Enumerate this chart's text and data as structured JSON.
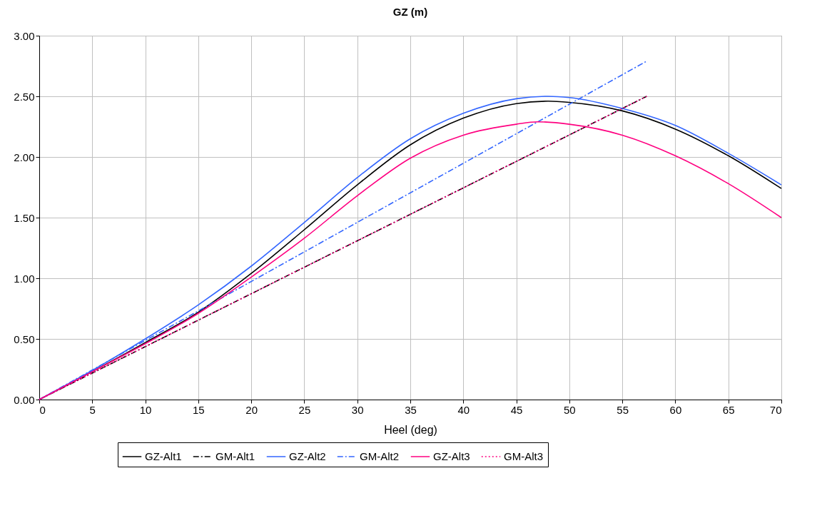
{
  "chart_data": {
    "type": "line",
    "title": "GZ (m)",
    "xlabel": "Heel (deg)",
    "xlim": [
      0,
      70
    ],
    "xticks": [
      0,
      5,
      10,
      15,
      20,
      25,
      30,
      35,
      40,
      45,
      50,
      55,
      60,
      65,
      70
    ],
    "ylim": [
      0,
      3
    ],
    "yticks": [
      {
        "value": 0,
        "label": "0.00"
      },
      {
        "value": 0.5,
        "label": "0.50"
      },
      {
        "value": 1,
        "label": "1.00"
      },
      {
        "value": 1.5,
        "label": "1.50"
      },
      {
        "value": 2,
        "label": "2.00"
      },
      {
        "value": 2.5,
        "label": "2.50"
      },
      {
        "value": 3,
        "label": "3.00"
      }
    ],
    "grid": true,
    "legend": "bottom",
    "marker": "none",
    "series": [
      {
        "name": "GZ-Alt1",
        "color": "#000000",
        "line_style": "solid",
        "x": [
          0,
          5,
          10,
          15,
          20,
          25,
          30,
          35,
          40,
          45,
          48,
          50,
          55,
          60,
          65,
          70
        ],
        "values": [
          0,
          0.23,
          0.47,
          0.72,
          1.04,
          1.4,
          1.77,
          2.1,
          2.32,
          2.44,
          2.46,
          2.45,
          2.38,
          2.23,
          2.01,
          1.74
        ]
      },
      {
        "name": "GM-Alt1",
        "color": "#000000",
        "line_style": "dashed",
        "x": [
          0,
          57.3
        ],
        "values": [
          0,
          2.5
        ]
      },
      {
        "name": "GZ-Alt2",
        "color": "#3366ff",
        "line_style": "solid",
        "x": [
          0,
          5,
          10,
          15,
          20,
          25,
          30,
          35,
          40,
          45,
          48,
          50,
          55,
          60,
          65,
          70
        ],
        "values": [
          0,
          0.24,
          0.5,
          0.78,
          1.1,
          1.46,
          1.83,
          2.15,
          2.36,
          2.48,
          2.5,
          2.49,
          2.4,
          2.26,
          2.03,
          1.77
        ]
      },
      {
        "name": "GM-Alt2",
        "color": "#3366ff",
        "line_style": "dashed",
        "x": [
          0,
          57.3
        ],
        "values": [
          0,
          2.79
        ]
      },
      {
        "name": "GZ-Alt3",
        "color": "#ff0080",
        "line_style": "solid",
        "x": [
          0,
          5,
          10,
          15,
          20,
          25,
          30,
          35,
          40,
          45,
          47,
          50,
          55,
          60,
          65,
          70
        ],
        "values": [
          0,
          0.23,
          0.46,
          0.71,
          1.01,
          1.33,
          1.68,
          1.99,
          2.18,
          2.27,
          2.29,
          2.27,
          2.18,
          2.01,
          1.78,
          1.5
        ]
      },
      {
        "name": "GM-Alt3",
        "color": "#ff0080",
        "line_style": "dotted",
        "x": [
          0,
          57.3
        ],
        "values": [
          0,
          2.5
        ]
      }
    ]
  }
}
